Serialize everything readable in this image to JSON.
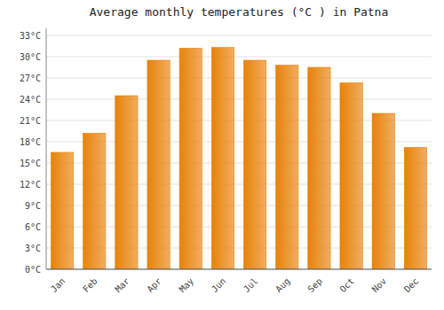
{
  "chart_data": {
    "type": "bar",
    "title": "Average monthly temperatures (°C ) in Patna",
    "categories": [
      "Jan",
      "Feb",
      "Mar",
      "Apr",
      "May",
      "Jun",
      "Jul",
      "Aug",
      "Sep",
      "Oct",
      "Nov",
      "Dec"
    ],
    "values": [
      16.5,
      19.2,
      24.5,
      29.5,
      31.2,
      31.3,
      29.5,
      28.8,
      28.5,
      26.3,
      22.0,
      17.2
    ],
    "color": "#E8820A",
    "ylim": [
      0,
      34
    ],
    "yticks": [
      {
        "value": 0,
        "label": "0°C"
      },
      {
        "value": 3,
        "label": "3°C"
      },
      {
        "value": 6,
        "label": "6°C"
      },
      {
        "value": 9,
        "label": "9°C"
      },
      {
        "value": 12,
        "label": "12°C"
      },
      {
        "value": 15,
        "label": "15°C"
      },
      {
        "value": 18,
        "label": "18°C"
      },
      {
        "value": 21,
        "label": "21°C"
      },
      {
        "value": 24,
        "label": "24°C"
      },
      {
        "value": 27,
        "label": "27°C"
      },
      {
        "value": 30,
        "label": "30°C"
      },
      {
        "value": 33,
        "label": "33°C"
      }
    ],
    "grid": true
  }
}
